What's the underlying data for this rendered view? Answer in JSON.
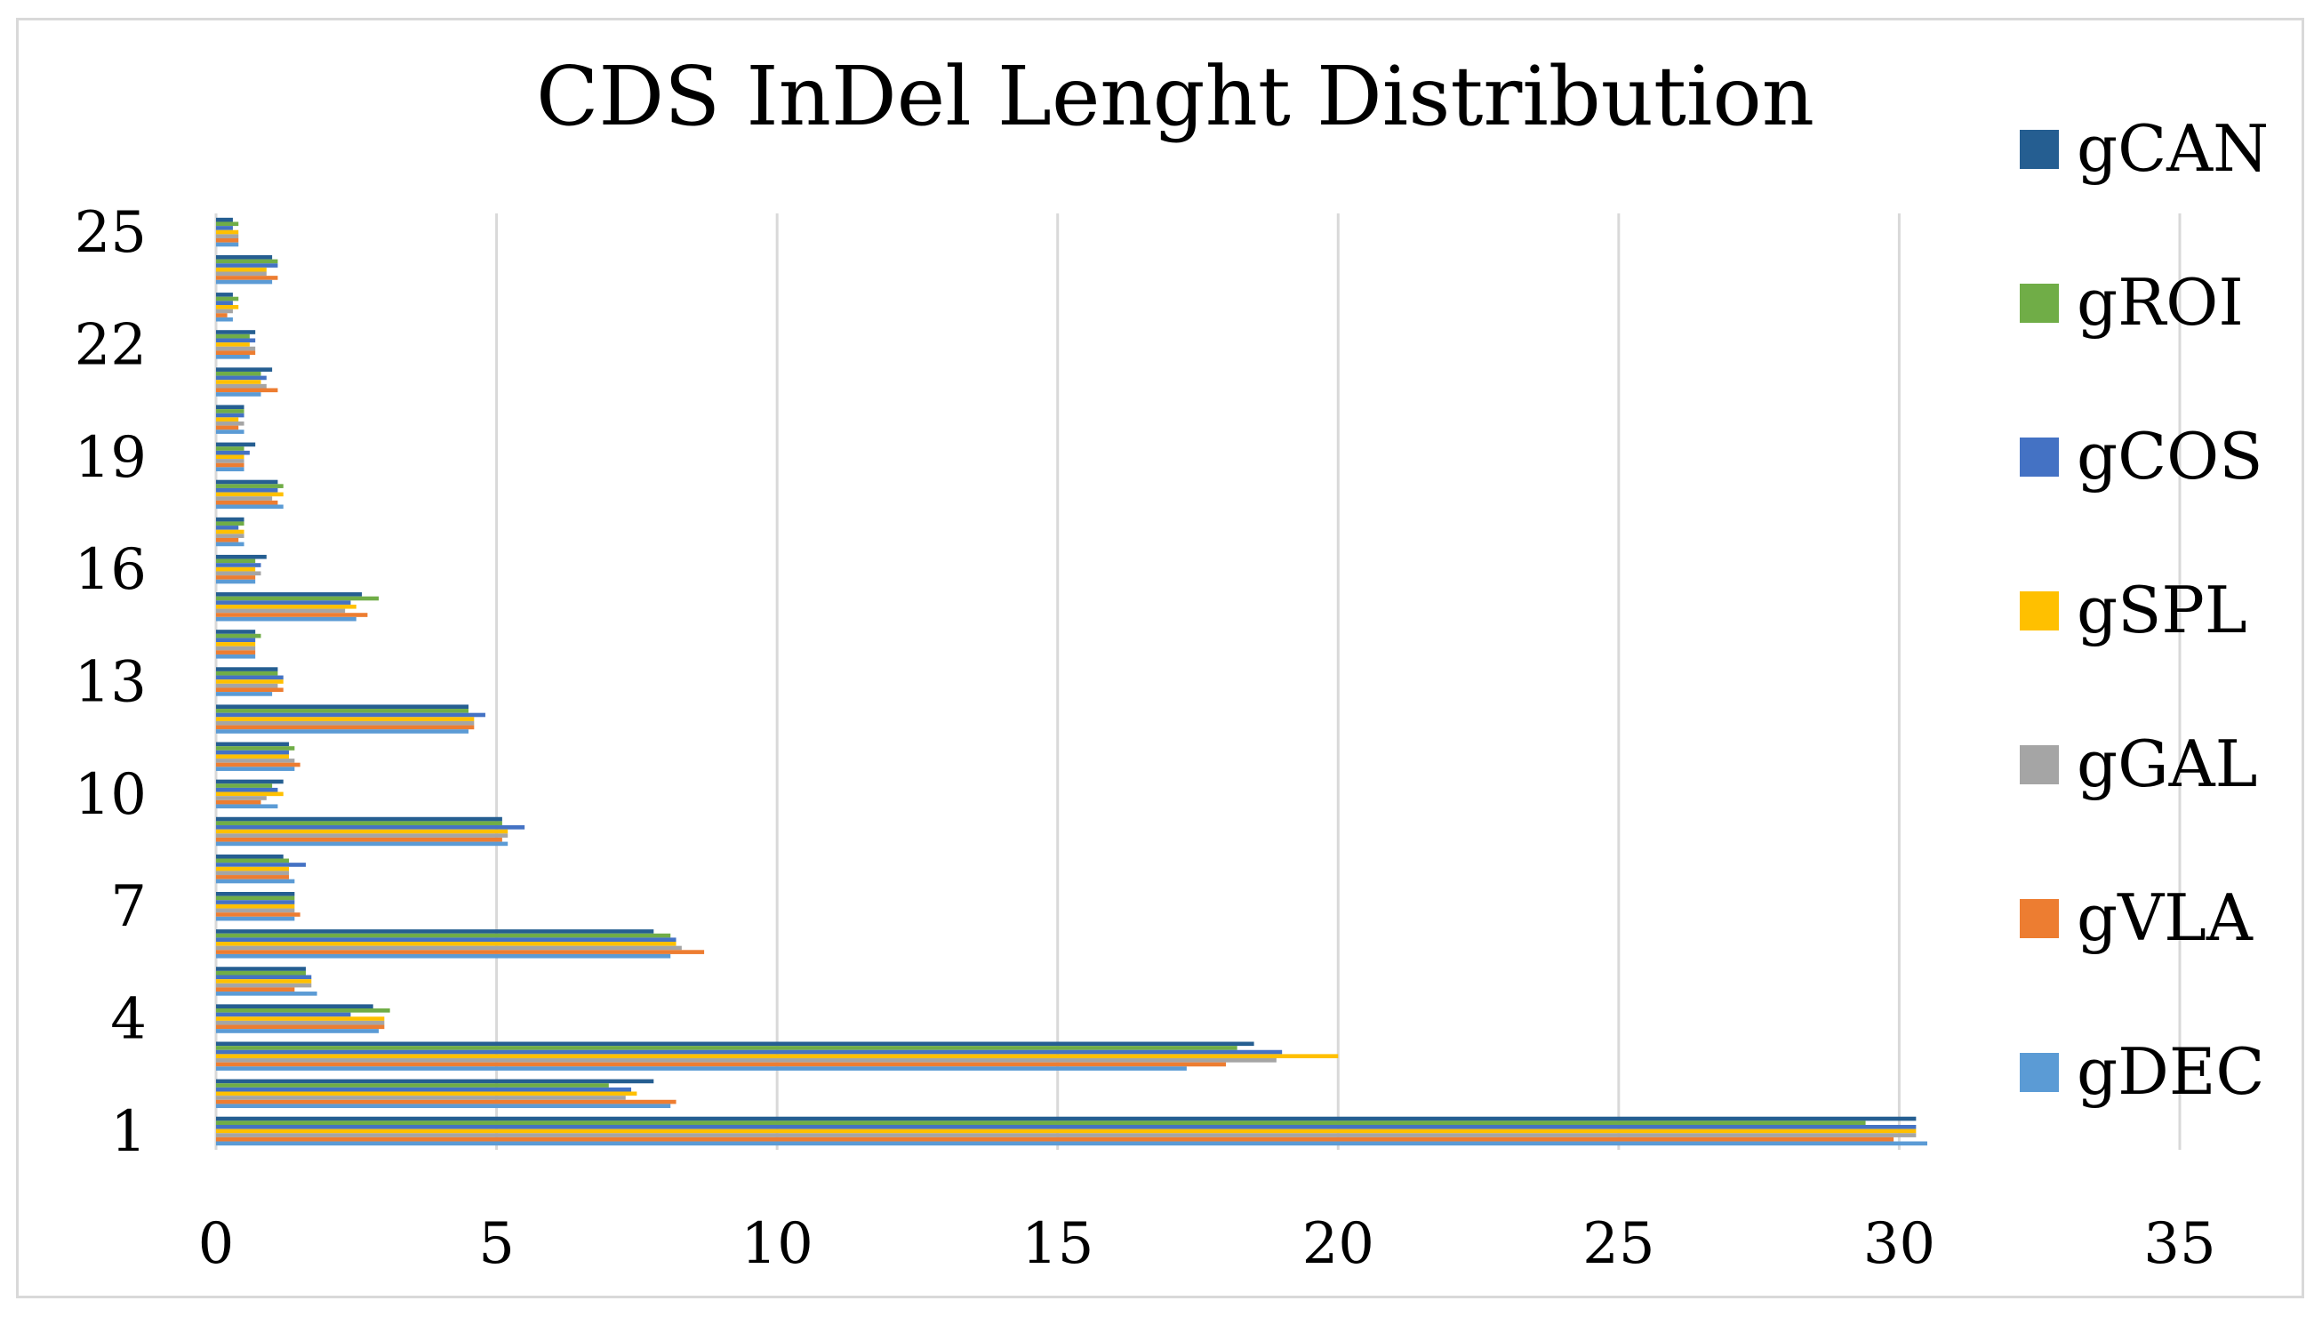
{
  "chart_data": {
    "type": "bar",
    "orientation": "horizontal",
    "title": "CDS InDel Lenght Distribution",
    "xlabel": "",
    "ylabel": "",
    "xlim": [
      0,
      35
    ],
    "xticks": [
      0,
      5,
      10,
      15,
      20,
      25,
      30,
      35
    ],
    "ytick_labels": [
      "1",
      "4",
      "7",
      "10",
      "13",
      "16",
      "19",
      "22",
      "25"
    ],
    "ytick_categories": [
      1,
      4,
      7,
      10,
      13,
      16,
      19,
      22,
      25
    ],
    "grid": "vertical",
    "legend_position": "right",
    "categories": [
      1,
      2,
      3,
      4,
      5,
      6,
      7,
      8,
      9,
      10,
      11,
      12,
      13,
      14,
      15,
      16,
      17,
      18,
      19,
      20,
      21,
      22,
      23,
      24,
      25
    ],
    "series": [
      {
        "name": "gCAN",
        "color": "#255e91",
        "values": [
          30.3,
          7.8,
          18.5,
          2.8,
          1.6,
          7.8,
          1.4,
          1.2,
          5.1,
          1.2,
          1.3,
          4.5,
          1.1,
          0.7,
          2.6,
          0.9,
          0.5,
          1.1,
          0.7,
          0.5,
          1.0,
          0.7,
          0.3,
          1.0,
          0.3
        ]
      },
      {
        "name": "gROI",
        "color": "#70ad47",
        "values": [
          29.4,
          7.0,
          18.2,
          3.1,
          1.6,
          8.1,
          1.4,
          1.3,
          5.1,
          1.0,
          1.4,
          4.5,
          1.1,
          0.8,
          2.9,
          0.7,
          0.5,
          1.2,
          0.5,
          0.5,
          0.8,
          0.6,
          0.4,
          1.1,
          0.4
        ]
      },
      {
        "name": "gCOS",
        "color": "#4472c4",
        "values": [
          30.3,
          7.4,
          19.0,
          2.4,
          1.7,
          8.2,
          1.4,
          1.6,
          5.5,
          1.1,
          1.3,
          4.8,
          1.2,
          0.7,
          2.4,
          0.8,
          0.4,
          1.1,
          0.6,
          0.5,
          0.9,
          0.7,
          0.3,
          1.1,
          0.3
        ]
      },
      {
        "name": "gSPL",
        "color": "#ffc000",
        "values": [
          30.3,
          7.5,
          20.0,
          3.0,
          1.7,
          8.2,
          1.4,
          1.3,
          5.2,
          1.2,
          1.3,
          4.6,
          1.2,
          0.7,
          2.5,
          0.7,
          0.5,
          1.2,
          0.5,
          0.4,
          0.8,
          0.6,
          0.4,
          0.9,
          0.4
        ]
      },
      {
        "name": "gGAL",
        "color": "#a5a5a5",
        "values": [
          30.3,
          7.3,
          18.9,
          3.0,
          1.7,
          8.3,
          1.4,
          1.3,
          5.2,
          0.9,
          1.4,
          4.6,
          1.1,
          0.7,
          2.3,
          0.8,
          0.5,
          1.0,
          0.5,
          0.5,
          0.9,
          0.7,
          0.3,
          0.9,
          0.4
        ]
      },
      {
        "name": "gVLA",
        "color": "#ed7d31",
        "values": [
          29.9,
          8.2,
          18.0,
          3.0,
          1.4,
          8.7,
          1.5,
          1.3,
          5.1,
          0.8,
          1.5,
          4.6,
          1.2,
          0.7,
          2.7,
          0.7,
          0.4,
          1.1,
          0.5,
          0.4,
          1.1,
          0.7,
          0.2,
          1.1,
          0.4
        ]
      },
      {
        "name": "gDEC",
        "color": "#5b9bd5",
        "values": [
          30.5,
          8.1,
          17.3,
          2.9,
          1.8,
          8.1,
          1.4,
          1.4,
          5.2,
          1.1,
          1.4,
          4.5,
          1.0,
          0.7,
          2.5,
          0.7,
          0.5,
          1.2,
          0.5,
          0.5,
          0.8,
          0.6,
          0.3,
          1.0,
          0.4
        ]
      }
    ],
    "legend_order": [
      "gCAN",
      "gROI",
      "gCOS",
      "gSPL",
      "gGAL",
      "gVLA",
      "gDEC"
    ],
    "colors": {
      "gridline": "#d9d9d9",
      "frame": "#d9d9d9",
      "text": "#000000"
    }
  }
}
